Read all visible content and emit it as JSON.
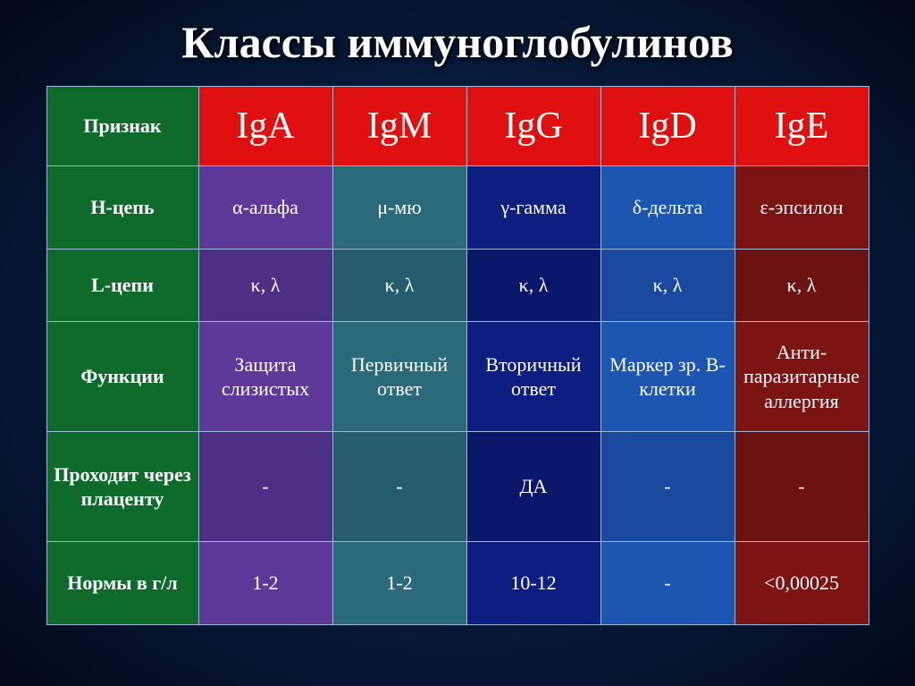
{
  "title": "Классы иммуноглобулинов",
  "table": {
    "header_label": "Признак",
    "classes": [
      "IgA",
      "IgM",
      "IgG",
      "IgD",
      "IgE"
    ],
    "column_colors": [
      "#5d3a9a",
      "#2b6a7a",
      "#0e1e80",
      "#1d55b3",
      "#7d1414"
    ],
    "header_bg": "#e11010",
    "label_bg": "#0f6b2c",
    "border_color": "#9fb7d6",
    "header_fontsize": 42,
    "cell_fontsize": 22,
    "rows": [
      {
        "label": "Н-цепь",
        "cells": [
          "α-альфа",
          "μ-мю",
          "γ-гамма",
          "δ-дельта",
          "ε-эпсилон"
        ]
      },
      {
        "label": "L-цепи",
        "cells": [
          "κ, λ",
          "κ, λ",
          "κ, λ",
          "κ, λ",
          "κ, λ"
        ]
      },
      {
        "label": "Функции",
        "cells": [
          "Защита слизистых",
          "Первичный ответ",
          "Вторичный ответ",
          "Маркер зр. В-клетки",
          "Анти-паразитарные аллергия"
        ]
      },
      {
        "label": "Проходит через плаценту",
        "cells": [
          "-",
          "-",
          "ДА",
          "-",
          "-"
        ]
      },
      {
        "label": "Нормы в г/л",
        "cells": [
          "1-2",
          "1-2",
          "10-12",
          "-",
          "<0,00025"
        ]
      }
    ]
  },
  "background_color": "#051530",
  "title_fontsize": 50,
  "title_color": "#ffffff"
}
